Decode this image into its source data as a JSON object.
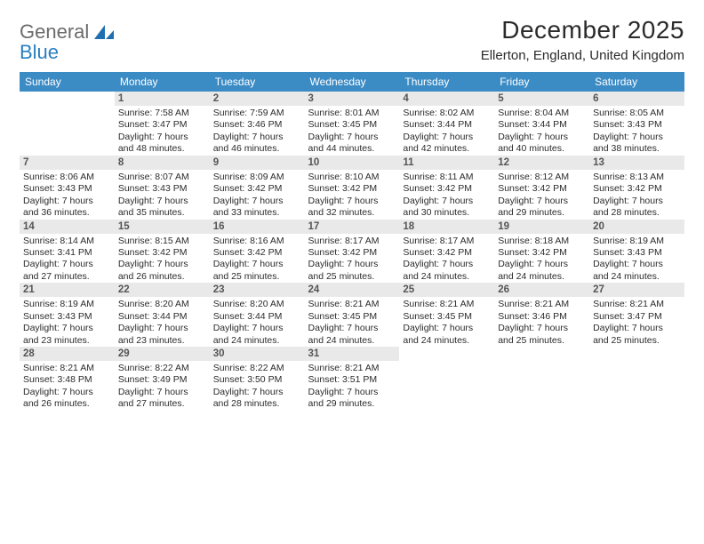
{
  "logo": {
    "word1": "General",
    "word2": "Blue"
  },
  "title": "December 2025",
  "location": "Ellerton, England, United Kingdom",
  "header_bg": "#3b8bc5",
  "daynum_bg": "#e9e9e9",
  "days_of_week": [
    "Sunday",
    "Monday",
    "Tuesday",
    "Wednesday",
    "Thursday",
    "Friday",
    "Saturday"
  ],
  "weeks": [
    [
      {
        "n": "",
        "sr": "",
        "ss": "",
        "dl": ""
      },
      {
        "n": "1",
        "sr": "Sunrise: 7:58 AM",
        "ss": "Sunset: 3:47 PM",
        "dl": "Daylight: 7 hours and 48 minutes."
      },
      {
        "n": "2",
        "sr": "Sunrise: 7:59 AM",
        "ss": "Sunset: 3:46 PM",
        "dl": "Daylight: 7 hours and 46 minutes."
      },
      {
        "n": "3",
        "sr": "Sunrise: 8:01 AM",
        "ss": "Sunset: 3:45 PM",
        "dl": "Daylight: 7 hours and 44 minutes."
      },
      {
        "n": "4",
        "sr": "Sunrise: 8:02 AM",
        "ss": "Sunset: 3:44 PM",
        "dl": "Daylight: 7 hours and 42 minutes."
      },
      {
        "n": "5",
        "sr": "Sunrise: 8:04 AM",
        "ss": "Sunset: 3:44 PM",
        "dl": "Daylight: 7 hours and 40 minutes."
      },
      {
        "n": "6",
        "sr": "Sunrise: 8:05 AM",
        "ss": "Sunset: 3:43 PM",
        "dl": "Daylight: 7 hours and 38 minutes."
      }
    ],
    [
      {
        "n": "7",
        "sr": "Sunrise: 8:06 AM",
        "ss": "Sunset: 3:43 PM",
        "dl": "Daylight: 7 hours and 36 minutes."
      },
      {
        "n": "8",
        "sr": "Sunrise: 8:07 AM",
        "ss": "Sunset: 3:43 PM",
        "dl": "Daylight: 7 hours and 35 minutes."
      },
      {
        "n": "9",
        "sr": "Sunrise: 8:09 AM",
        "ss": "Sunset: 3:42 PM",
        "dl": "Daylight: 7 hours and 33 minutes."
      },
      {
        "n": "10",
        "sr": "Sunrise: 8:10 AM",
        "ss": "Sunset: 3:42 PM",
        "dl": "Daylight: 7 hours and 32 minutes."
      },
      {
        "n": "11",
        "sr": "Sunrise: 8:11 AM",
        "ss": "Sunset: 3:42 PM",
        "dl": "Daylight: 7 hours and 30 minutes."
      },
      {
        "n": "12",
        "sr": "Sunrise: 8:12 AM",
        "ss": "Sunset: 3:42 PM",
        "dl": "Daylight: 7 hours and 29 minutes."
      },
      {
        "n": "13",
        "sr": "Sunrise: 8:13 AM",
        "ss": "Sunset: 3:42 PM",
        "dl": "Daylight: 7 hours and 28 minutes."
      }
    ],
    [
      {
        "n": "14",
        "sr": "Sunrise: 8:14 AM",
        "ss": "Sunset: 3:41 PM",
        "dl": "Daylight: 7 hours and 27 minutes."
      },
      {
        "n": "15",
        "sr": "Sunrise: 8:15 AM",
        "ss": "Sunset: 3:42 PM",
        "dl": "Daylight: 7 hours and 26 minutes."
      },
      {
        "n": "16",
        "sr": "Sunrise: 8:16 AM",
        "ss": "Sunset: 3:42 PM",
        "dl": "Daylight: 7 hours and 25 minutes."
      },
      {
        "n": "17",
        "sr": "Sunrise: 8:17 AM",
        "ss": "Sunset: 3:42 PM",
        "dl": "Daylight: 7 hours and 25 minutes."
      },
      {
        "n": "18",
        "sr": "Sunrise: 8:17 AM",
        "ss": "Sunset: 3:42 PM",
        "dl": "Daylight: 7 hours and 24 minutes."
      },
      {
        "n": "19",
        "sr": "Sunrise: 8:18 AM",
        "ss": "Sunset: 3:42 PM",
        "dl": "Daylight: 7 hours and 24 minutes."
      },
      {
        "n": "20",
        "sr": "Sunrise: 8:19 AM",
        "ss": "Sunset: 3:43 PM",
        "dl": "Daylight: 7 hours and 24 minutes."
      }
    ],
    [
      {
        "n": "21",
        "sr": "Sunrise: 8:19 AM",
        "ss": "Sunset: 3:43 PM",
        "dl": "Daylight: 7 hours and 23 minutes."
      },
      {
        "n": "22",
        "sr": "Sunrise: 8:20 AM",
        "ss": "Sunset: 3:44 PM",
        "dl": "Daylight: 7 hours and 23 minutes."
      },
      {
        "n": "23",
        "sr": "Sunrise: 8:20 AM",
        "ss": "Sunset: 3:44 PM",
        "dl": "Daylight: 7 hours and 24 minutes."
      },
      {
        "n": "24",
        "sr": "Sunrise: 8:21 AM",
        "ss": "Sunset: 3:45 PM",
        "dl": "Daylight: 7 hours and 24 minutes."
      },
      {
        "n": "25",
        "sr": "Sunrise: 8:21 AM",
        "ss": "Sunset: 3:45 PM",
        "dl": "Daylight: 7 hours and 24 minutes."
      },
      {
        "n": "26",
        "sr": "Sunrise: 8:21 AM",
        "ss": "Sunset: 3:46 PM",
        "dl": "Daylight: 7 hours and 25 minutes."
      },
      {
        "n": "27",
        "sr": "Sunrise: 8:21 AM",
        "ss": "Sunset: 3:47 PM",
        "dl": "Daylight: 7 hours and 25 minutes."
      }
    ],
    [
      {
        "n": "28",
        "sr": "Sunrise: 8:21 AM",
        "ss": "Sunset: 3:48 PM",
        "dl": "Daylight: 7 hours and 26 minutes."
      },
      {
        "n": "29",
        "sr": "Sunrise: 8:22 AM",
        "ss": "Sunset: 3:49 PM",
        "dl": "Daylight: 7 hours and 27 minutes."
      },
      {
        "n": "30",
        "sr": "Sunrise: 8:22 AM",
        "ss": "Sunset: 3:50 PM",
        "dl": "Daylight: 7 hours and 28 minutes."
      },
      {
        "n": "31",
        "sr": "Sunrise: 8:21 AM",
        "ss": "Sunset: 3:51 PM",
        "dl": "Daylight: 7 hours and 29 minutes."
      },
      {
        "n": "",
        "sr": "",
        "ss": "",
        "dl": ""
      },
      {
        "n": "",
        "sr": "",
        "ss": "",
        "dl": ""
      },
      {
        "n": "",
        "sr": "",
        "ss": "",
        "dl": ""
      }
    ]
  ]
}
